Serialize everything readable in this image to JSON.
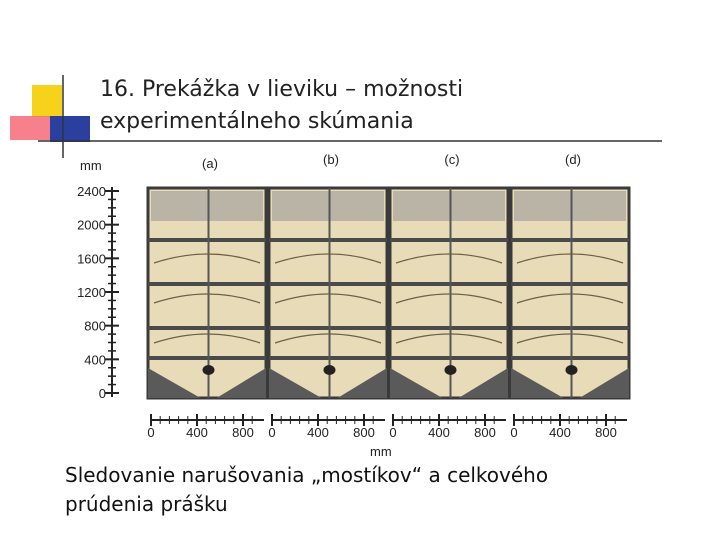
{
  "slide": {
    "title": [
      "16. Prekážka v lieviku – možnosti",
      "experimentálneho skúmania"
    ],
    "figure": {
      "y_unit": "mm",
      "y_ticks": [
        2400,
        2000,
        1600,
        1200,
        800,
        400,
        0
      ],
      "panels": [
        "(a)",
        "(b)",
        "(c)",
        "(d)"
      ],
      "x_ticks": [
        0,
        400,
        800
      ],
      "x_unit": "mm"
    },
    "caption": [
      "Sledovanie narušovania „mostíkov“ a celkového",
      "prúdenia prášku"
    ]
  }
}
